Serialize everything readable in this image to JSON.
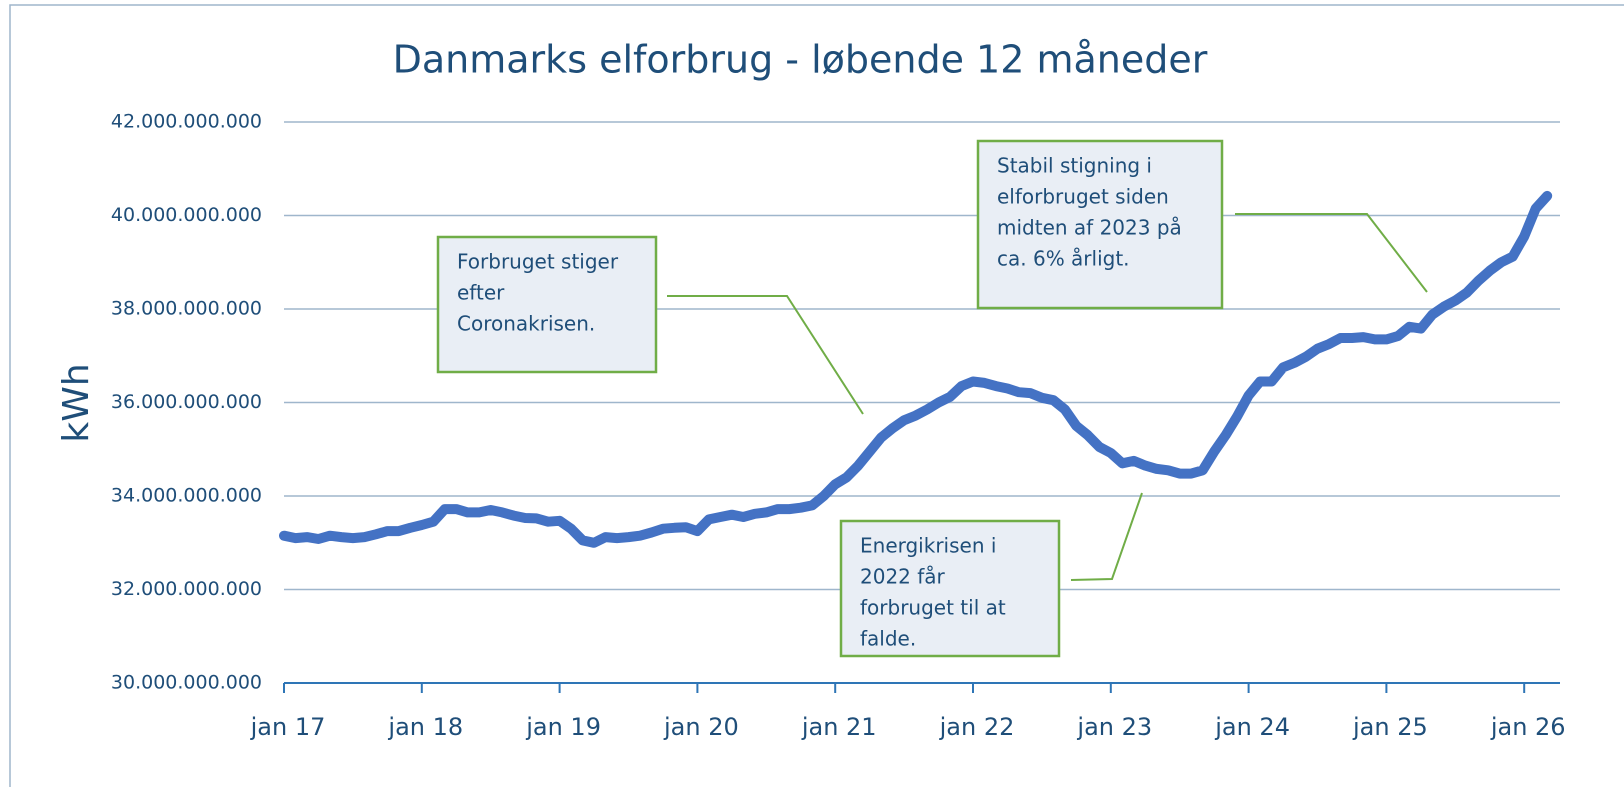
{
  "chart_data": {
    "type": "line",
    "title": "Danmarks elforbrug - løbende 12 måneder",
    "y_label": "kWh",
    "categories": [
      "jan 17",
      null,
      null,
      null,
      null,
      null,
      null,
      null,
      null,
      null,
      null,
      null,
      "jan 18",
      null,
      null,
      null,
      null,
      null,
      null,
      null,
      null,
      null,
      null,
      null,
      "jan 19",
      null,
      null,
      null,
      null,
      null,
      null,
      null,
      null,
      null,
      null,
      null,
      "jan 20",
      null,
      null,
      null,
      null,
      null,
      null,
      null,
      null,
      null,
      null,
      null,
      "jan 21",
      null,
      null,
      null,
      null,
      null,
      null,
      null,
      null,
      null,
      null,
      null,
      "jan 22",
      null,
      null,
      null,
      null,
      null,
      null,
      null,
      null,
      null,
      null,
      null,
      "jan 23",
      null,
      null,
      null,
      null,
      null,
      null,
      null,
      null,
      null,
      null,
      null,
      "jan 24",
      null,
      null,
      null,
      null,
      null,
      null,
      null,
      null,
      null,
      null,
      null,
      "jan 25",
      null,
      null,
      null,
      null,
      null,
      null,
      null,
      null,
      null,
      null,
      null,
      "jan 26",
      null,
      null
    ],
    "series": [
      {
        "name": "Elforbrug",
        "color": "#4472c4",
        "values": [
          33150000000,
          33100000000,
          33120000000,
          33080000000,
          33150000000,
          33120000000,
          33100000000,
          33120000000,
          33180000000,
          33250000000,
          33250000000,
          33320000000,
          33380000000,
          33450000000,
          33720000000,
          33720000000,
          33650000000,
          33650000000,
          33700000000,
          33650000000,
          33580000000,
          33530000000,
          33520000000,
          33450000000,
          33470000000,
          33300000000,
          33050000000,
          33000000000,
          33120000000,
          33100000000,
          33120000000,
          33150000000,
          33220000000,
          33300000000,
          33320000000,
          33330000000,
          33250000000,
          33500000000,
          33550000000,
          33600000000,
          33550000000,
          33620000000,
          33650000000,
          33720000000,
          33720000000,
          33750000000,
          33800000000,
          34000000000,
          34250000000,
          34400000000,
          34650000000,
          34950000000,
          35250000000,
          35450000000,
          35620000000,
          35720000000,
          35850000000,
          36000000000,
          36120000000,
          36350000000,
          36450000000,
          36420000000,
          36350000000,
          36300000000,
          36220000000,
          36200000000,
          36100000000,
          36050000000,
          35850000000,
          35500000000,
          35300000000,
          35050000000,
          34920000000,
          34700000000,
          34750000000,
          34650000000,
          34580000000,
          34550000000,
          34480000000,
          34480000000,
          34550000000,
          34950000000,
          35300000000,
          35700000000,
          36150000000,
          36450000000,
          36450000000,
          36750000000,
          36850000000,
          36980000000,
          37150000000,
          37250000000,
          37380000000,
          37380000000,
          37400000000,
          37350000000,
          37350000000,
          37420000000,
          37620000000,
          37580000000,
          37880000000,
          38050000000,
          38180000000,
          38350000000,
          38600000000,
          38820000000,
          39000000000,
          39120000000,
          39550000000,
          40150000000,
          40420000000
        ]
      }
    ],
    "ylim": [
      30000000000,
      42000000000
    ],
    "yticks": [
      {
        "value": 30000000000,
        "label": "30.000.000.000"
      },
      {
        "value": 32000000000,
        "label": "32.000.000.000"
      },
      {
        "value": 34000000000,
        "label": "34.000.000.000"
      },
      {
        "value": 36000000000,
        "label": "36.000.000.000"
      },
      {
        "value": 38000000000,
        "label": "38.000.000.000"
      },
      {
        "value": 40000000000,
        "label": "40.000.000.000"
      },
      {
        "value": 42000000000,
        "label": "42.000.000.000"
      }
    ],
    "grid": true,
    "annotations": [
      {
        "lines": [
          "Forbruget stiger",
          "efter",
          "Coronakrisen."
        ]
      },
      {
        "lines": [
          "Stabil stigning i",
          "elforbruget siden",
          "midten af 2023 på",
          "ca. 6% årligt."
        ]
      },
      {
        "lines": [
          "Energikrisen i",
          "2022 får",
          "forbruget til at",
          "falde."
        ]
      }
    ]
  }
}
